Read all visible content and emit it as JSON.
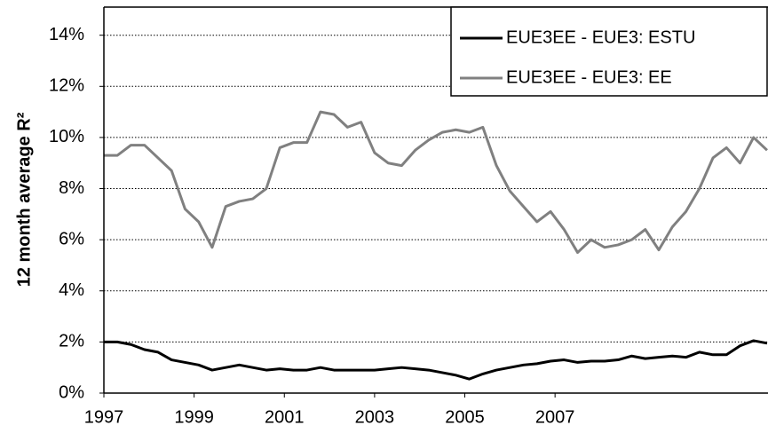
{
  "chart_data": {
    "type": "line",
    "y_label": "12 month average R²",
    "x": [
      1997,
      1997.3,
      1997.6,
      1997.9,
      1998.2,
      1998.5,
      1998.8,
      1999.1,
      1999.4,
      1999.7,
      2000,
      2000.3,
      2000.6,
      2000.9,
      2001.2,
      2001.5,
      2001.8,
      2002.1,
      2002.4,
      2002.7,
      2003,
      2003.3,
      2003.6,
      2003.9,
      2004.2,
      2004.5,
      2004.8,
      2005.1,
      2005.4,
      2005.7,
      2006,
      2006.3,
      2006.6,
      2006.9,
      2007.2,
      2007.5,
      2007.8,
      2008.1,
      2008.4,
      2008.7,
      2009,
      2009.3,
      2009.6,
      2009.9,
      2010.2,
      2010.5,
      2010.8,
      2011.1,
      2011.4,
      2011.7
    ],
    "series": [
      {
        "name": "EUE3EE - EUE3: ESTU",
        "color": "#000000",
        "values": [
          2.0,
          2.0,
          1.9,
          1.7,
          1.6,
          1.3,
          1.2,
          1.1,
          0.9,
          1.0,
          1.1,
          1.0,
          0.9,
          0.95,
          0.9,
          0.9,
          1.0,
          0.9,
          0.9,
          0.9,
          0.9,
          0.95,
          1.0,
          0.95,
          0.9,
          0.8,
          0.7,
          0.55,
          0.75,
          0.9,
          1.0,
          1.1,
          1.15,
          1.25,
          1.3,
          1.2,
          1.25,
          1.25,
          1.3,
          1.45,
          1.35,
          1.4,
          1.45,
          1.4,
          1.6,
          1.5,
          1.5,
          1.85,
          2.05,
          1.95
        ]
      },
      {
        "name": "EUE3EE - EUE3: EE",
        "color": "#808080",
        "values": [
          9.3,
          9.3,
          9.7,
          9.7,
          9.2,
          8.7,
          7.2,
          6.7,
          5.7,
          7.3,
          7.5,
          7.6,
          8.0,
          9.6,
          9.8,
          9.8,
          11.0,
          10.9,
          10.4,
          10.6,
          9.4,
          9.0,
          8.9,
          9.5,
          9.9,
          10.2,
          10.3,
          10.2,
          10.4,
          8.9,
          7.9,
          7.3,
          6.7,
          7.1,
          6.4,
          5.5,
          6.0,
          5.7,
          5.8,
          6.0,
          6.4,
          5.6,
          6.5,
          7.1,
          8.0,
          9.2,
          9.6,
          9.0,
          10.0,
          9.5
        ]
      }
    ],
    "xlim": [
      1997,
      2011.72
    ],
    "xticks": [
      1997,
      1999,
      2001,
      2003,
      2005,
      2007
    ],
    "ylim": [
      0,
      15.1
    ],
    "yticks": [
      {
        "value": 0,
        "label": "0%"
      },
      {
        "value": 2,
        "label": "2%"
      },
      {
        "value": 4,
        "label": "4%"
      },
      {
        "value": 6,
        "label": "6%"
      },
      {
        "value": 8,
        "label": "8%"
      },
      {
        "value": 10,
        "label": "10%"
      },
      {
        "value": 12,
        "label": "12%"
      },
      {
        "value": 14,
        "label": "14%"
      }
    ],
    "grid": true,
    "legend": "top-right"
  }
}
